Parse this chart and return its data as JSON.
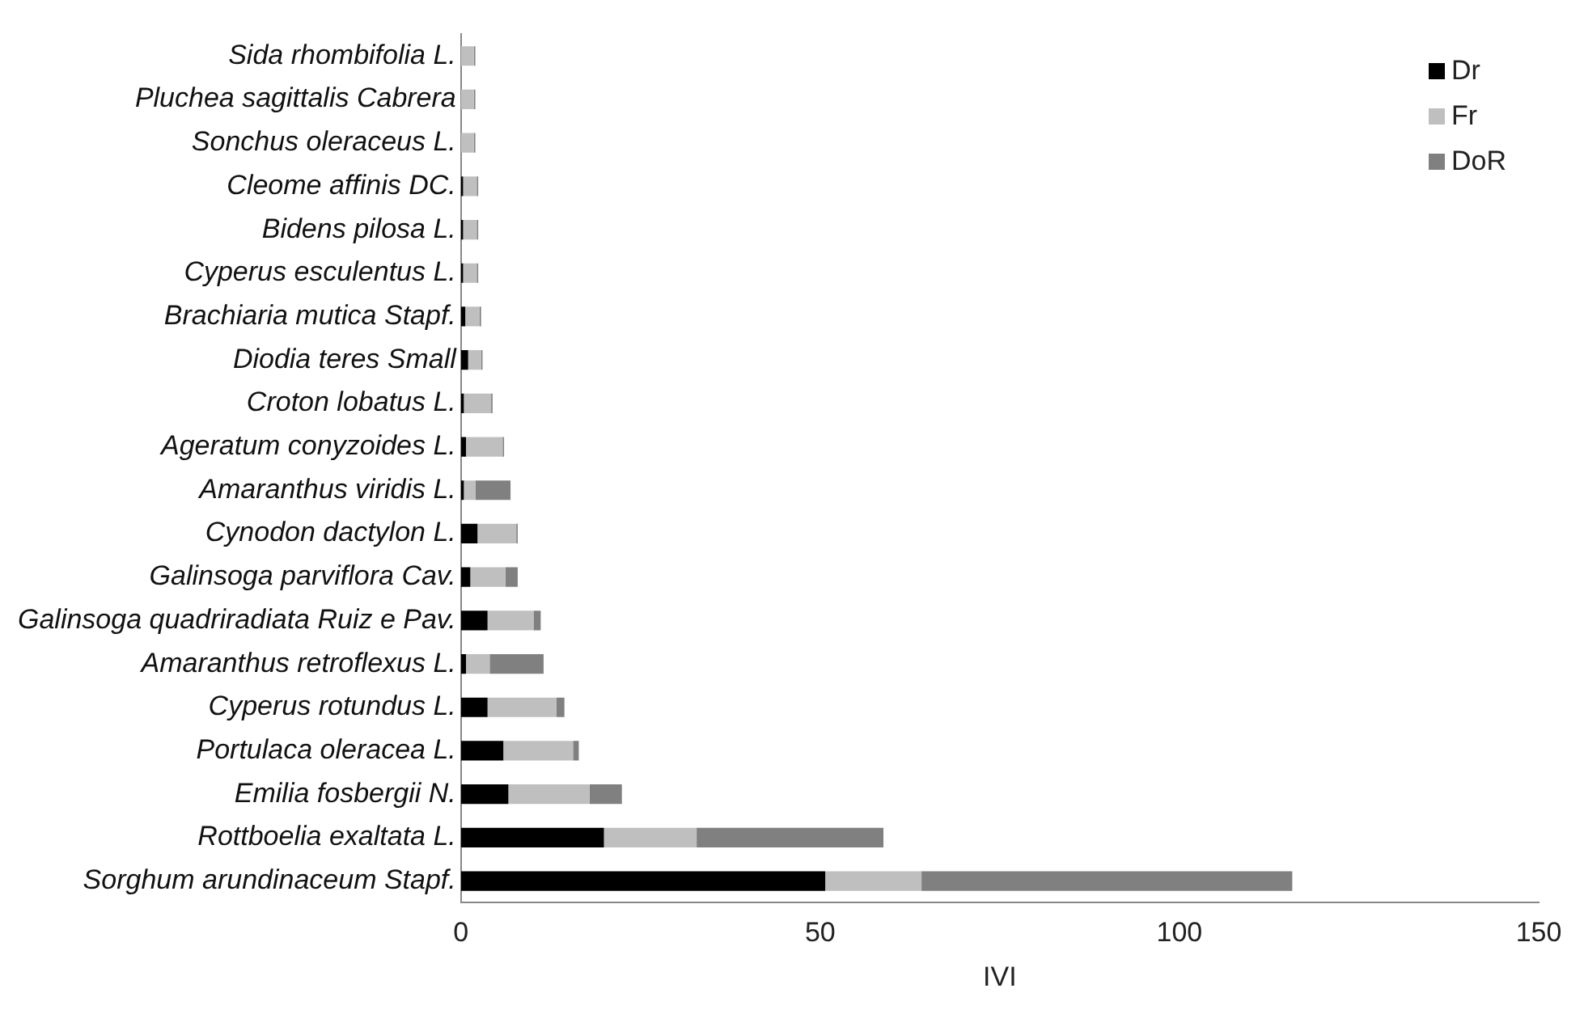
{
  "chart_data": {
    "type": "bar",
    "orientation": "horizontal",
    "stacked": true,
    "xlabel": "IVI",
    "categories": [
      "Sida rhombifolia L.",
      "Pluchea sagittalis Cabrera",
      "Sonchus oleraceus L.",
      "Cleome affinis DC.",
      "Bidens pilosa L.",
      "Cyperus esculentus L.",
      "Brachiaria mutica Stapf.",
      "Diodia teres Small",
      "Croton lobatus L.",
      "Ageratum conyzoides L.",
      "Amaranthus viridis L.",
      "Cynodon dactylon L.",
      "Galinsoga parviflora Cav.",
      "Galinsoga quadriradiata Ruiz e Pav.",
      "Amaranthus retroflexus L.",
      "Cyperus rotundus L.",
      "Portulaca oleracea L.",
      "Emilia fosbergii N.",
      "Rottboelia exaltata L.",
      "Sorghum arundinaceum Stapf."
    ],
    "series": [
      {
        "name": "Dr",
        "color": "#000000",
        "values": [
          0,
          0,
          0,
          0.3,
          0.3,
          0.3,
          0.6,
          1.0,
          0.4,
          0.7,
          0.4,
          2.3,
          1.3,
          3.7,
          0.7,
          3.7,
          5.9,
          6.6,
          19.9,
          50.7
        ]
      },
      {
        "name": "Fr",
        "color": "#bfbfbf",
        "values": [
          1.8,
          1.8,
          1.8,
          1.9,
          1.9,
          1.9,
          2.0,
          1.8,
          3.8,
          5.1,
          1.6,
          5.4,
          4.9,
          6.4,
          3.3,
          9.6,
          9.7,
          11.3,
          12.9,
          13.4
        ]
      },
      {
        "name": "DoR",
        "color": "#808080",
        "values": [
          0.2,
          0.2,
          0.2,
          0.2,
          0.2,
          0.2,
          0.2,
          0.2,
          0.2,
          0.2,
          4.9,
          0.2,
          1.7,
          1.0,
          7.5,
          1.1,
          0.8,
          4.5,
          26.0,
          51.6
        ]
      }
    ],
    "xlim": [
      0,
      150
    ],
    "xticks": [
      0,
      50,
      100,
      150
    ],
    "grid": false,
    "legend": "top right"
  }
}
